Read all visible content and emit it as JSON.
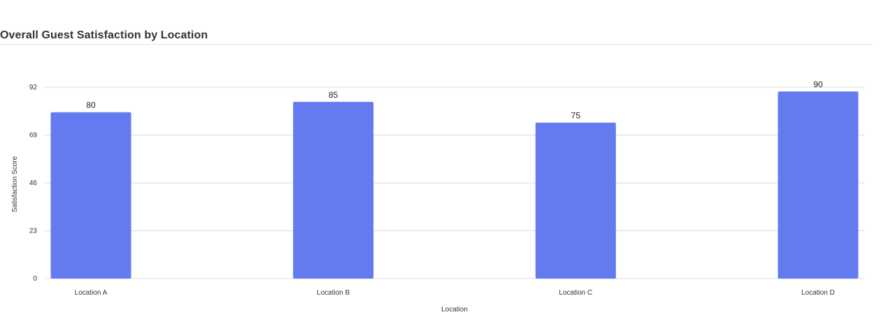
{
  "header": {
    "title": "Overall Guest Satisfaction by Location"
  },
  "chart_data": {
    "type": "bar",
    "title": "Overall Guest Satisfaction by Location",
    "xlabel": "Location",
    "ylabel": "Satisfaction Score",
    "categories": [
      "Location A",
      "Location B",
      "Location C",
      "Location D"
    ],
    "values": [
      80,
      85,
      75,
      90
    ],
    "yticks": [
      0,
      23,
      46,
      69,
      92
    ],
    "ylim": [
      0,
      92
    ],
    "grid": true,
    "legend": "none",
    "bar_color": "#647bf0",
    "grid_color": "#dddddd",
    "data_labels": true
  }
}
